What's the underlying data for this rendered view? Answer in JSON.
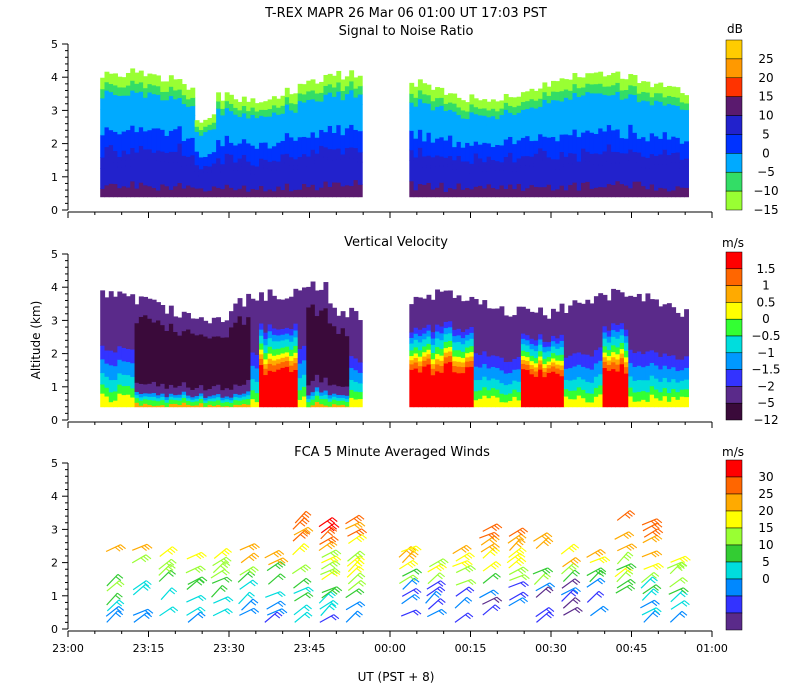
{
  "header": {
    "title_line": "T-REX   MAPR 26 Mar 06   01:00 UT   17:03   PST"
  },
  "x_axis": {
    "label": "UT  (PST + 8)",
    "ticks": [
      "23:00",
      "23:15",
      "23:30",
      "23:45",
      "00:00",
      "00:15",
      "00:30",
      "00:45",
      "01:00"
    ]
  },
  "y_axis": {
    "label": "Altitude (km)",
    "ticks": [
      "0",
      "1",
      "2",
      "3",
      "4",
      "5"
    ],
    "range": [
      0,
      5
    ]
  },
  "chart_data": [
    {
      "type": "heatmap",
      "title": "Signal to Noise Ratio",
      "units": "dB",
      "xlabel": "UT  (PST + 8)",
      "ylabel": "Altitude (km)",
      "ylim": [
        0,
        5
      ],
      "colorbar_labels": [
        "25",
        "20",
        "15",
        "10",
        "5",
        "0",
        "−5",
        "−10",
        "−15"
      ],
      "colors": [
        "#ffcc00",
        "#ff9900",
        "#ff3300",
        "#5a1a6e",
        "#2222cc",
        "#0033ff",
        "#00aaff",
        "#33dd66",
        "#99ff33"
      ]
    },
    {
      "type": "heatmap",
      "title": "Vertical Velocity",
      "units": "m/s",
      "xlabel": "UT  (PST + 8)",
      "ylabel": "Altitude (km)",
      "ylim": [
        0,
        5
      ],
      "colorbar_labels": [
        "1.5",
        "1",
        "0.5",
        "0",
        "−0.5",
        "−1",
        "−1.5",
        "−2",
        "−5",
        "−12"
      ],
      "colors": [
        "#ff0000",
        "#ff6600",
        "#ffaa00",
        "#ffff00",
        "#33ff33",
        "#00dddd",
        "#0099ff",
        "#3333ff",
        "#5a2a8a",
        "#3a0a3a"
      ]
    },
    {
      "type": "wind_barbs",
      "title": "FCA 5 Minute Averaged Winds",
      "units": "m/s",
      "xlabel": "UT  (PST + 8)",
      "ylabel": "Altitude (km)",
      "ylim": [
        0,
        5
      ],
      "colorbar_labels": [
        "30",
        "25",
        "20",
        "15",
        "10",
        "5",
        "0"
      ],
      "colors": [
        "#ff0000",
        "#ff6600",
        "#ffaa00",
        "#ffff00",
        "#99ff33",
        "#33cc33",
        "#00dddd",
        "#0088ff",
        "#3333ff",
        "#5a2a8a"
      ]
    }
  ]
}
